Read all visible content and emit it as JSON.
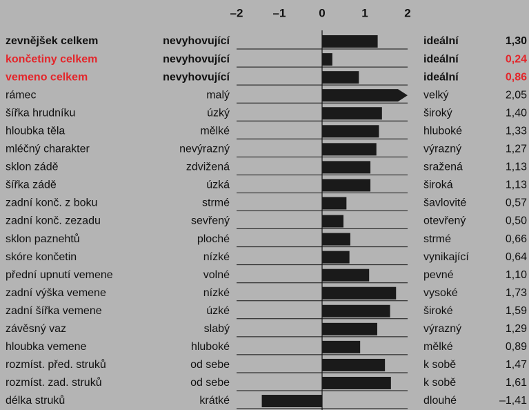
{
  "chart_data": {
    "type": "bar",
    "orientation": "horizontal",
    "categories": [
      "zevnějšek celkem",
      "končetiny celkem",
      "vemeno celkem",
      "rámec",
      "šířka hrudníku",
      "hloubka těla",
      "mléčný charakter",
      "sklon zádě",
      "šířka zádě",
      "zadní konč. z boku",
      "zadní konč. zezadu",
      "sklon paznehtů",
      "skóre končetin",
      "přední upnutí vemene",
      "zadní výška vemene",
      "zadní šířka vemene",
      "závěsný vaz",
      "hloubka vemene",
      "rozmíst. před. struků",
      "rozmíst. zad. struků",
      "délka struků"
    ],
    "low_labels": [
      "nevyhovující",
      "nevyhovující",
      "nevyhovující",
      "malý",
      "úzký",
      "mělké",
      "nevýrazný",
      "zdvižená",
      "úzká",
      "strmé",
      "sevřený",
      "ploché",
      "nízké",
      "volné",
      "nízké",
      "úzké",
      "slabý",
      "hluboké",
      "od sebe",
      "od sebe",
      "krátké"
    ],
    "high_labels": [
      "ideální",
      "ideální",
      "ideální",
      "velký",
      "široký",
      "hluboké",
      "výrazný",
      "sražená",
      "široká",
      "šavlovité",
      "otevřený",
      "strmé",
      "vynikající",
      "pevné",
      "vysoké",
      "široké",
      "výrazný",
      "mělké",
      "k sobě",
      "k sobě",
      "dlouhé"
    ],
    "values": [
      1.3,
      0.24,
      0.86,
      2.05,
      1.4,
      1.33,
      1.27,
      1.13,
      1.13,
      0.57,
      0.5,
      0.66,
      0.64,
      1.1,
      1.73,
      1.59,
      1.29,
      0.89,
      1.47,
      1.61,
      -1.41
    ],
    "value_labels": [
      "1,30",
      "0,24",
      "0,86",
      "2,05",
      "1,40",
      "1,33",
      "1,27",
      "1,13",
      "1,13",
      "0,57",
      "0,50",
      "0,66",
      "0,64",
      "1,10",
      "1,73",
      "1,59",
      "1,29",
      "0,89",
      "1,47",
      "1,61",
      "–1,41"
    ],
    "color": "#1a1a1a",
    "bold_rows": [
      0,
      1,
      2
    ],
    "red_rows": [
      1,
      2
    ],
    "highlight_color": "#e3262b",
    "xlim": [
      -2,
      2
    ],
    "xticks": [
      {
        "value": -2,
        "label": "–2"
      },
      {
        "value": -1,
        "label": "–1"
      },
      0,
      1,
      2
    ]
  }
}
